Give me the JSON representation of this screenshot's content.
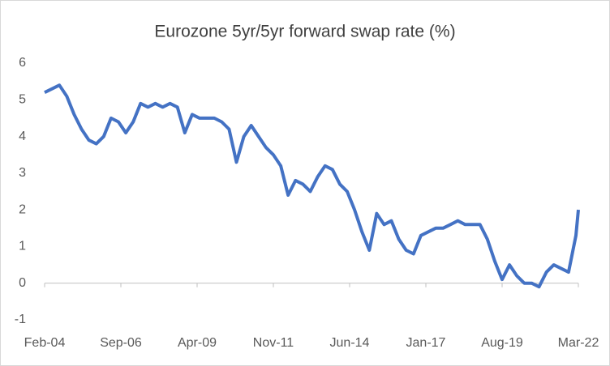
{
  "chart_data": {
    "type": "line",
    "title": "Eurozone 5yr/5yr forward swap rate (%)",
    "x": [
      "Feb-04",
      "May-04",
      "Aug-04",
      "Nov-04",
      "Feb-05",
      "May-05",
      "Aug-05",
      "Nov-05",
      "Feb-06",
      "May-06",
      "Aug-06",
      "Nov-06",
      "Feb-07",
      "May-07",
      "Aug-07",
      "Nov-07",
      "Feb-08",
      "May-08",
      "Aug-08",
      "Nov-08",
      "Feb-09",
      "May-09",
      "Aug-09",
      "Nov-09",
      "Feb-10",
      "May-10",
      "Aug-10",
      "Nov-10",
      "Feb-11",
      "May-11",
      "Aug-11",
      "Nov-11",
      "Feb-12",
      "May-12",
      "Aug-12",
      "Nov-12",
      "Feb-13",
      "May-13",
      "Aug-13",
      "Nov-13",
      "Feb-14",
      "May-14",
      "Aug-14",
      "Nov-14",
      "Feb-15",
      "May-15",
      "Aug-15",
      "Nov-15",
      "Feb-16",
      "May-16",
      "Aug-16",
      "Nov-16",
      "Feb-17",
      "May-17",
      "Aug-17",
      "Nov-17",
      "Feb-18",
      "May-18",
      "Aug-18",
      "Nov-18",
      "Feb-19",
      "May-19",
      "Aug-19",
      "Nov-19",
      "Feb-20",
      "May-20",
      "Aug-20",
      "Nov-20",
      "Feb-21",
      "May-21",
      "Aug-21",
      "Nov-21",
      "Feb-22",
      "Mar-22"
    ],
    "series": [
      {
        "color": "#4472c4",
        "values": [
          5.2,
          5.3,
          5.4,
          5.1,
          4.6,
          4.2,
          3.9,
          3.8,
          4.0,
          4.5,
          4.4,
          4.1,
          4.4,
          4.9,
          4.8,
          4.9,
          4.8,
          4.9,
          4.8,
          4.1,
          4.6,
          4.5,
          4.5,
          4.5,
          4.4,
          4.2,
          3.3,
          4.0,
          4.3,
          4.0,
          3.7,
          3.5,
          3.2,
          2.4,
          2.8,
          2.7,
          2.5,
          2.9,
          3.2,
          3.1,
          2.7,
          2.5,
          2.0,
          1.4,
          0.9,
          1.9,
          1.6,
          1.7,
          1.2,
          0.9,
          0.8,
          1.3,
          1.4,
          1.5,
          1.5,
          1.6,
          1.7,
          1.6,
          1.6,
          1.6,
          1.2,
          0.6,
          0.1,
          0.5,
          0.2,
          0.0,
          0.0,
          -0.1,
          0.3,
          0.5,
          0.4,
          0.3,
          1.3,
          2.0
        ]
      }
    ],
    "xlim": [
      "Feb-04",
      "Mar-22"
    ],
    "xticks": [
      "Feb-04",
      "Sep-06",
      "Apr-09",
      "Nov-11",
      "Jun-14",
      "Jan-17",
      "Aug-19",
      "Mar-22"
    ],
    "ylim": [
      -1,
      6
    ],
    "yticks": [
      -1,
      0,
      1,
      2,
      3,
      4,
      5,
      6
    ],
    "grid": false
  }
}
